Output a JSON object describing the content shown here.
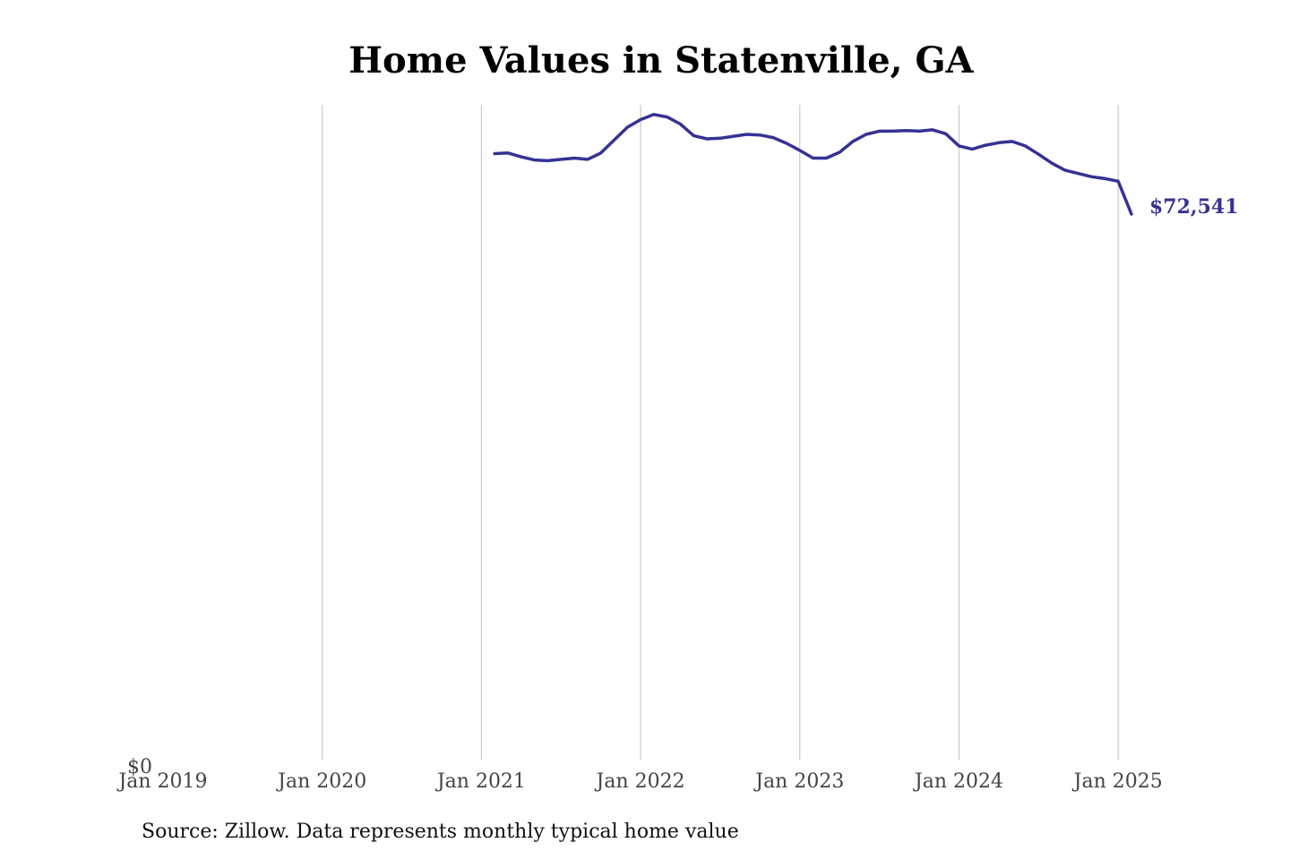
{
  "chart_data": {
    "type": "line",
    "title": "Home Values in Statenville, GA",
    "xlabel": "",
    "ylabel": "",
    "x_axis": {
      "min": "2019-01",
      "max": "2025-07",
      "ticks": [
        "Jan 2019",
        "Jan 2020",
        "Jan 2021",
        "Jan 2022",
        "Jan 2023",
        "Jan 2024",
        "Jan 2025"
      ],
      "tick_dates": [
        "2019-01",
        "2020-01",
        "2021-01",
        "2022-01",
        "2023-01",
        "2024-01",
        "2025-01"
      ],
      "grid": true
    },
    "y_axis": {
      "min": 0,
      "max": 102000,
      "tick_label": "$0",
      "grid": false
    },
    "series": [
      {
        "color": "#363293",
        "end_label": "$72,541",
        "x": [
          "2021-02",
          "2021-03",
          "2021-04",
          "2021-05",
          "2021-06",
          "2021-07",
          "2021-08",
          "2021-09",
          "2021-10",
          "2021-11",
          "2021-12",
          "2022-01",
          "2022-02",
          "2022-03",
          "2022-04",
          "2022-05",
          "2022-06",
          "2022-07",
          "2022-08",
          "2022-09",
          "2022-10",
          "2022-11",
          "2022-12",
          "2023-01",
          "2023-02",
          "2023-03",
          "2023-04",
          "2023-05",
          "2023-06",
          "2023-07",
          "2023-08",
          "2023-09",
          "2023-10",
          "2023-11",
          "2023-12",
          "2024-01",
          "2024-02",
          "2024-03",
          "2024-04",
          "2024-05",
          "2024-06",
          "2024-07",
          "2024-08",
          "2024-09",
          "2024-10",
          "2024-11",
          "2024-12",
          "2025-01",
          "2025-02"
        ],
        "values": [
          94400,
          94500,
          93900,
          93400,
          93300,
          93500,
          93700,
          93500,
          94500,
          96500,
          98500,
          99700,
          100500,
          100100,
          99000,
          97200,
          96700,
          96800,
          97100,
          97400,
          97300,
          96900,
          96000,
          94900,
          93700,
          93700,
          94600,
          96300,
          97400,
          97900,
          97900,
          98000,
          97900,
          98100,
          97500,
          95600,
          95100,
          95700,
          96100,
          96300,
          95600,
          94300,
          92900,
          91800,
          91300,
          90800,
          90500,
          90100,
          72541
        ]
      }
    ]
  },
  "source": "Source: Zillow. Data represents monthly typical home value"
}
